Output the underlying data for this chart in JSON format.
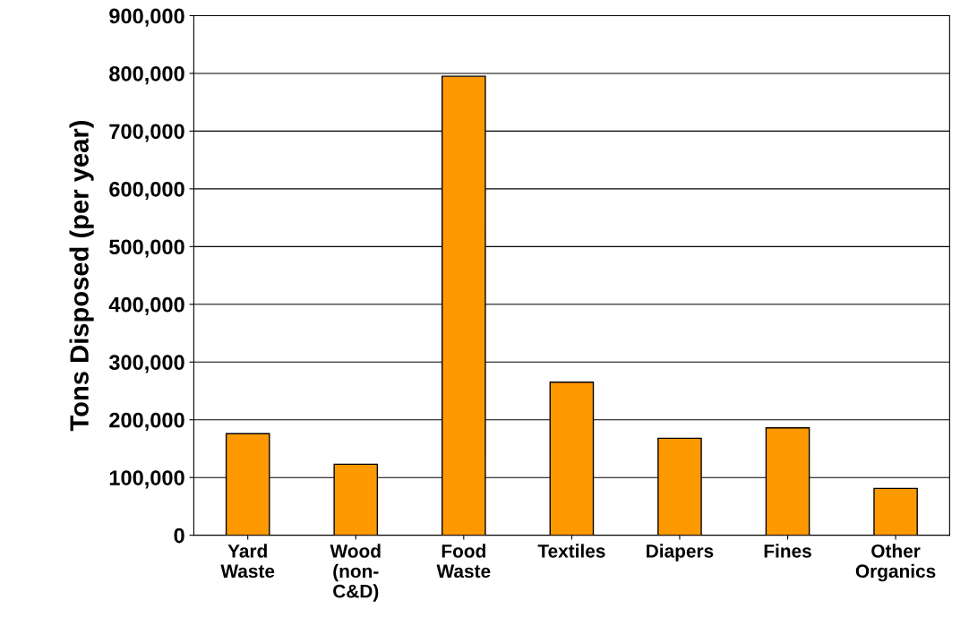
{
  "chart_data": {
    "type": "bar",
    "ylabel": "Tons Disposed (per year)",
    "categories": [
      "Yard\nWaste",
      "Wood\n(non-\nC&D)",
      "Food\nWaste",
      "Textiles",
      "Diapers",
      "Fines",
      "Other\nOrganics"
    ],
    "values": [
      176000,
      123000,
      795000,
      265000,
      168000,
      186000,
      81000
    ],
    "color": "#ff9900",
    "ylim": [
      0,
      900000
    ],
    "yticks": [
      0,
      {
        "value": 100000,
        "label": "100,000"
      },
      {
        "value": 200000,
        "label": "200,000"
      },
      {
        "value": 300000,
        "label": "300,000"
      },
      {
        "value": 400000,
        "label": "400,000"
      },
      {
        "value": 500000,
        "label": "500,000"
      },
      {
        "value": 600000,
        "label": "600,000"
      },
      {
        "value": 700000,
        "label": "700,000"
      },
      {
        "value": 800000,
        "label": "800,000"
      },
      {
        "value": 900000,
        "label": "900,000"
      }
    ],
    "grid": "y"
  }
}
